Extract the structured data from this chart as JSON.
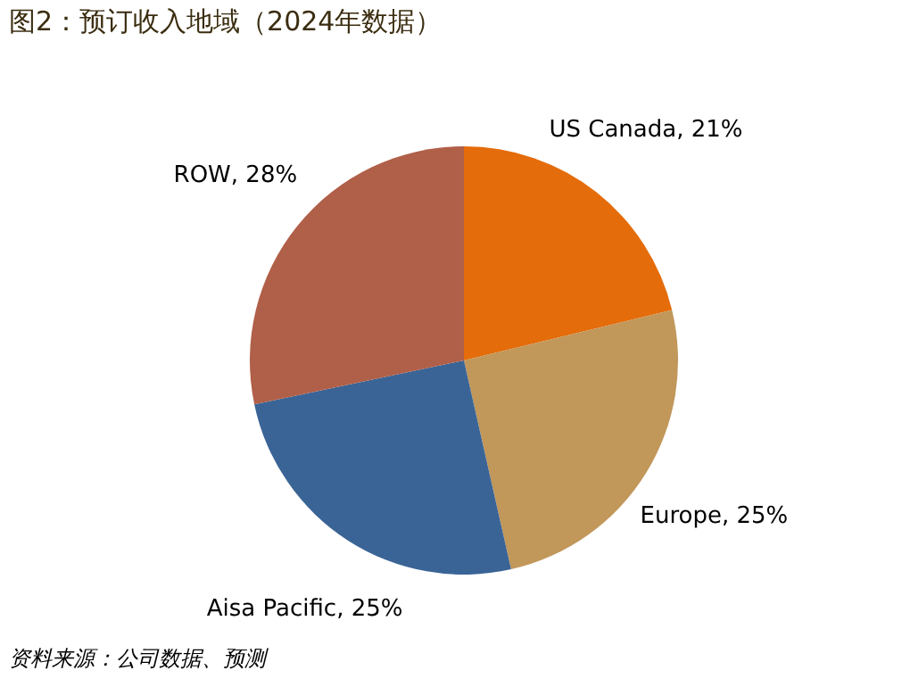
{
  "chart_data": {
    "type": "pie",
    "title": "图2：预订收入地域（2024年数据）",
    "categories": [
      "US Canada",
      "Europe",
      "Aisa Pacific",
      "ROW"
    ],
    "values": [
      21,
      25,
      25,
      28
    ],
    "colors": [
      "#e46c0a",
      "#c1975a",
      "#3a6496",
      "#b05f48"
    ],
    "value_labels": [
      "21%",
      "25%",
      "25%",
      "28%"
    ],
    "legend": false,
    "annotations": [
      "资料来源：公司数据、预测"
    ]
  }
}
